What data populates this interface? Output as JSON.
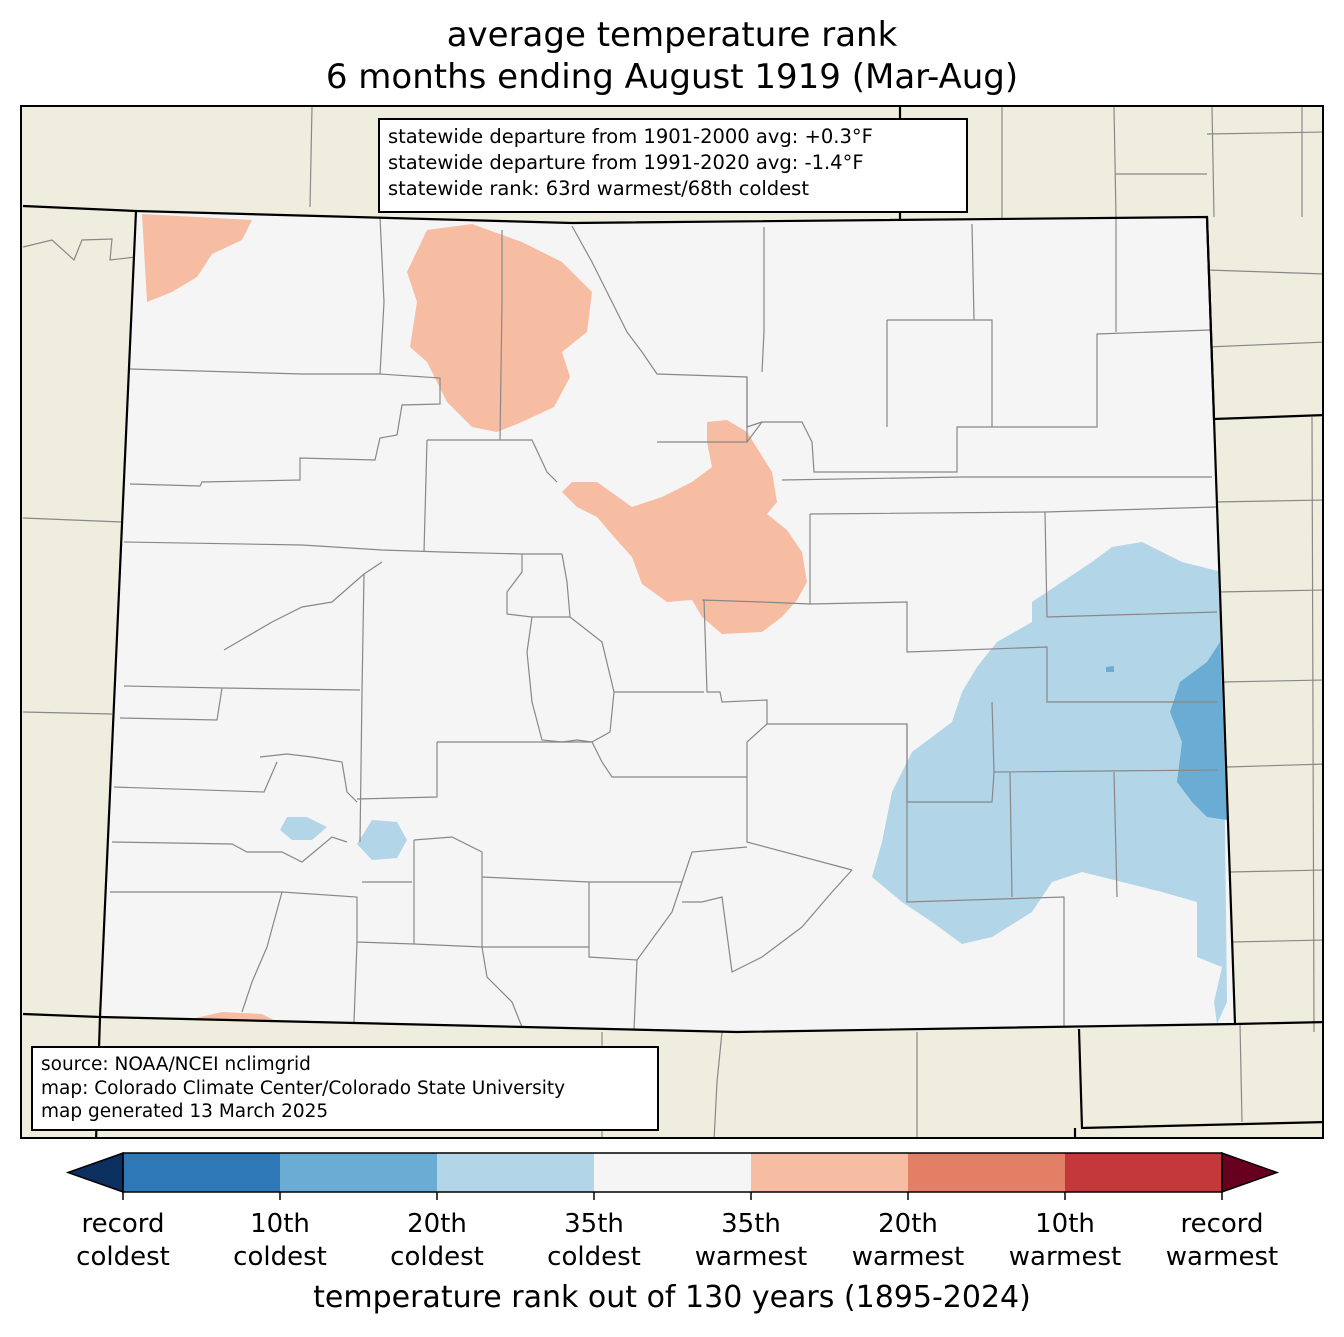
{
  "title": {
    "line1": "average temperature rank",
    "line2": "6 months ending August 1919 (Mar-Aug)"
  },
  "stats_box": {
    "lines": [
      "statewide departure from 1901-2000 avg: +0.3°F",
      "statewide departure from 1991-2020 avg: -1.4°F",
      "statewide rank: 63rd warmest/68th coldest"
    ]
  },
  "source_box": {
    "lines": [
      "source: NOAA/NCEI nclimgrid",
      "map: Colorado Climate Center/Colorado State University",
      "map generated 13 March 2025"
    ]
  },
  "colorbar": {
    "title": "temperature rank out of 130 years (1895-2024)",
    "under_color": "#0b2f5e",
    "over_color": "#67001f",
    "bins": [
      {
        "from": "record coldest",
        "to": "10th coldest",
        "color": "#2e78b8"
      },
      {
        "from": "10th coldest",
        "to": "20th coldest",
        "color": "#6aacd4"
      },
      {
        "from": "20th coldest",
        "to": "35th coldest",
        "color": "#b2d5e8"
      },
      {
        "from": "35th coldest",
        "to": "35th warmest",
        "color": "#f5f5f5"
      },
      {
        "from": "35th warmest",
        "to": "20th warmest",
        "color": "#f7bda3"
      },
      {
        "from": "20th warmest",
        "to": "10th warmest",
        "color": "#e37f64"
      },
      {
        "from": "10th warmest",
        "to": "record warmest",
        "color": "#c4373b"
      }
    ],
    "ticks": [
      {
        "line1": "record",
        "line2": "coldest"
      },
      {
        "line1": "10th",
        "line2": "coldest"
      },
      {
        "line1": "20th",
        "line2": "coldest"
      },
      {
        "line1": "35th",
        "line2": "coldest"
      },
      {
        "line1": "35th",
        "line2": "warmest"
      },
      {
        "line1": "20th",
        "line2": "warmest"
      },
      {
        "line1": "10th",
        "line2": "warmest"
      },
      {
        "line1": "record",
        "line2": "warmest"
      }
    ]
  },
  "map": {
    "background_color": "#efedde",
    "state_fill": "#f5f5f5",
    "county_line_color": "#888888",
    "state_line_color": "#000000",
    "regions": [
      {
        "category": "35th warmest to 20th warmest",
        "color": "#f7bda3",
        "area": "northwest corner"
      },
      {
        "category": "35th warmest to 20th warmest",
        "color": "#f7bda3",
        "area": "north-central mountains"
      },
      {
        "category": "35th warmest to 20th warmest",
        "color": "#f7bda3",
        "area": "central Front Range"
      },
      {
        "category": "20th coldest to 35th coldest",
        "color": "#b2d5e8",
        "area": "southeastern plains"
      },
      {
        "category": "10th coldest to 20th coldest",
        "color": "#6aacd4",
        "area": "east border"
      },
      {
        "category": "20th coldest to 35th coldest",
        "color": "#b2d5e8",
        "area": "southwest"
      }
    ]
  }
}
